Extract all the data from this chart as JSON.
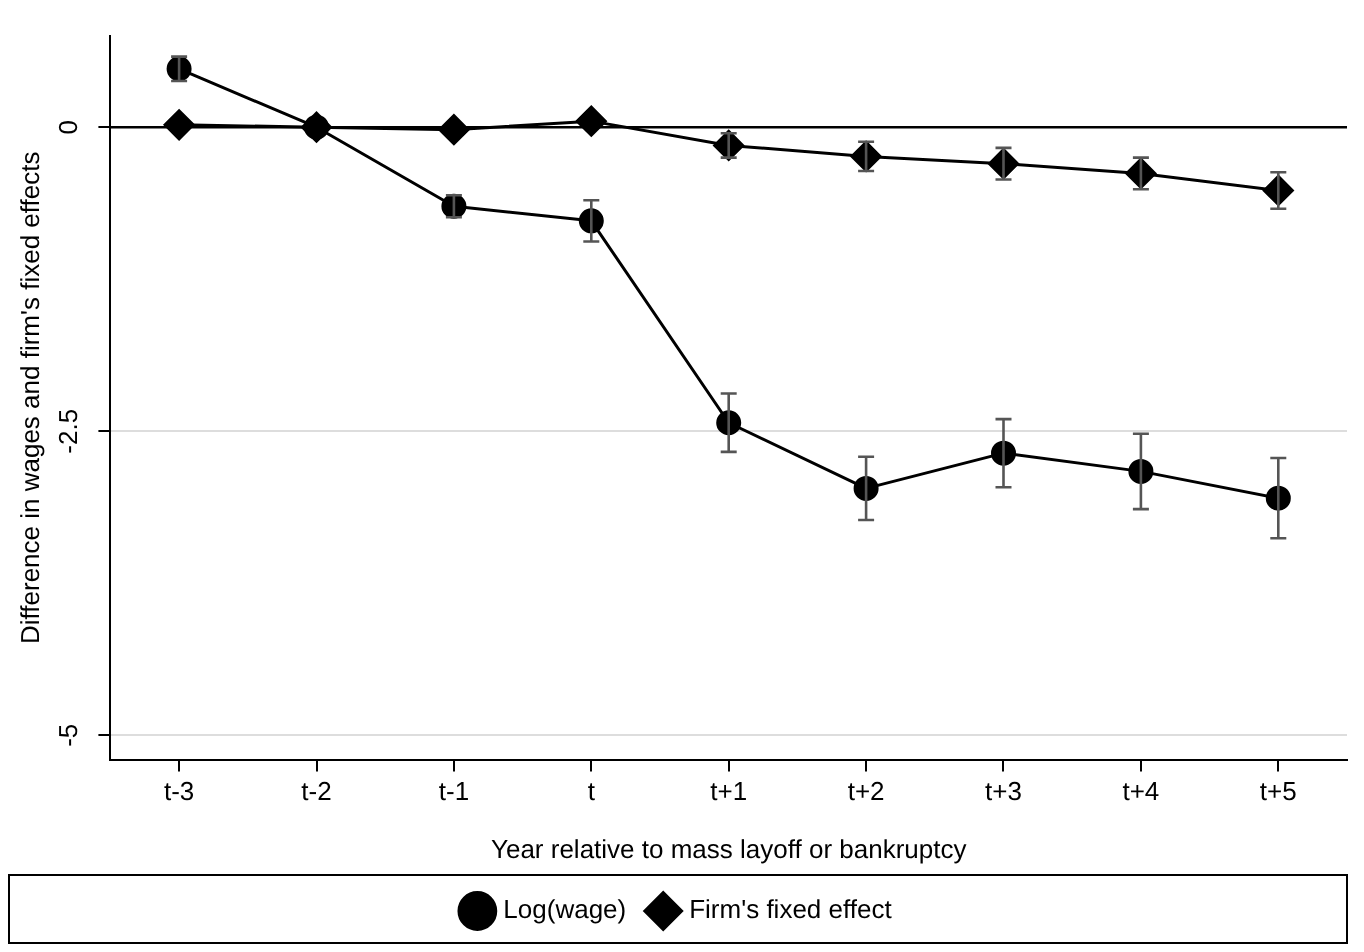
{
  "chart_data": {
    "type": "line",
    "xlabel": "Year relative to mass layoff or bankruptcy",
    "ylabel": "Difference in wages and firm's fixed effects",
    "series": [
      {
        "name": "Log(wage)",
        "color": "#000000",
        "marker": "circle",
        "values": [
          0.48,
          0,
          -0.65,
          -0.77,
          -2.43,
          -2.97,
          -2.68,
          -2.83,
          -3.05
        ],
        "errors": [
          0.1,
          null,
          0.09,
          0.17,
          0.24,
          0.26,
          0.28,
          0.31,
          0.33
        ]
      },
      {
        "name": "Firm's fixed effect",
        "color": "#000000",
        "marker": "diamond",
        "values": [
          0.02,
          0,
          -0.02,
          0.05,
          -0.15,
          -0.24,
          -0.3,
          -0.38,
          -0.52
        ],
        "errors": [
          null,
          null,
          null,
          null,
          0.1,
          0.12,
          0.13,
          0.13,
          0.15
        ]
      }
    ],
    "categories": [
      "t-3",
      "t-2",
      "t-1",
      "t",
      "t+1",
      "t+2",
      "t+3",
      "t+4",
      "t+5"
    ],
    "ylim": [
      -5.2,
      0.75
    ],
    "yticks": [
      0,
      -2.5,
      -5
    ],
    "grid": "y",
    "legend": "bottom",
    "line_style": "solid",
    "ref_lines": [
      {
        "axis": "y",
        "value": 0,
        "color": "#000000"
      }
    ]
  }
}
